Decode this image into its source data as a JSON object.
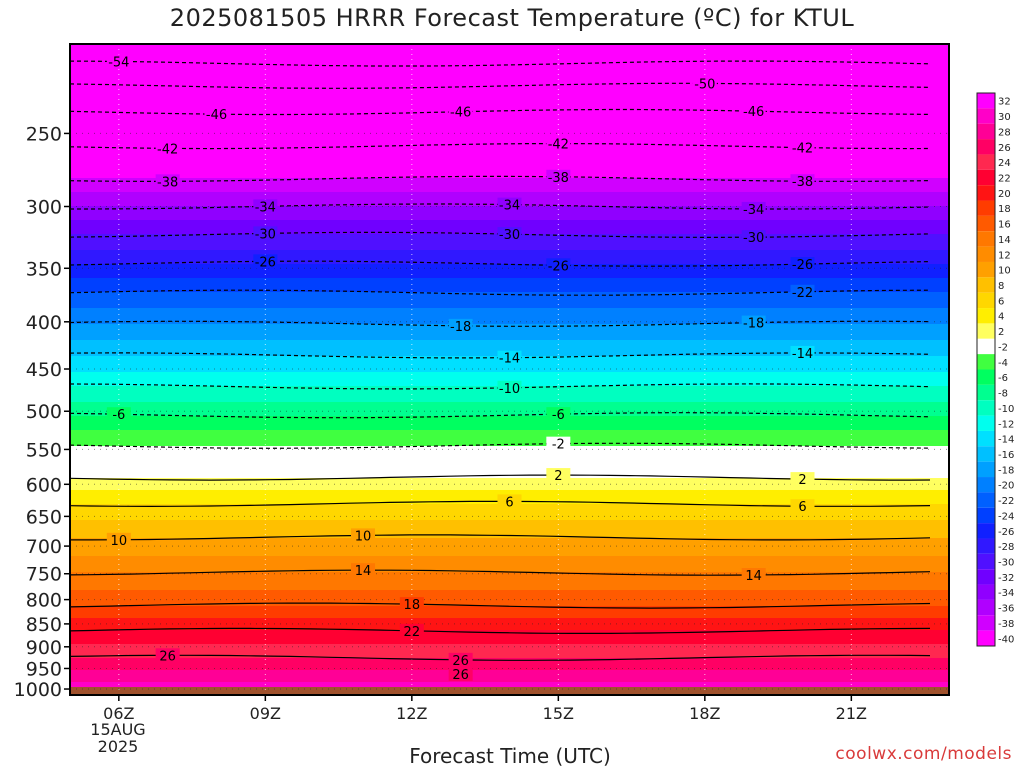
{
  "title": "2025081505 HRRR Forecast Temperature (ºC) for KTUL",
  "credit": "coolwx.com/models",
  "chart_data": {
    "type": "heatmap",
    "title": "2025081505 HRRR Forecast Temperature (ºC) for KTUL",
    "xlabel": "Forecast Time (UTC)",
    "ylabel": "",
    "x_ticks": [
      "06Z",
      "09Z",
      "12Z",
      "15Z",
      "18Z",
      "21Z"
    ],
    "x_ticks_hours": [
      6,
      9,
      12,
      15,
      18,
      21
    ],
    "date_label": [
      "15AUG",
      "2025"
    ],
    "xlim": [
      5,
      23
    ],
    "y_ticks": [
      250,
      300,
      350,
      400,
      450,
      500,
      550,
      600,
      650,
      700,
      750,
      800,
      850,
      900,
      950,
      1000
    ],
    "ylim_hpa": [
      1015,
      200
    ],
    "y_scale": "log",
    "surface_pressure": 995,
    "colorbar_levels": [
      32,
      30,
      28,
      26,
      24,
      22,
      20,
      18,
      16,
      14,
      12,
      10,
      8,
      6,
      4,
      2,
      -2,
      -4,
      -6,
      -8,
      -10,
      -12,
      -14,
      -16,
      -18,
      -20,
      -22,
      -24,
      -26,
      -28,
      -30,
      -32,
      -34,
      -36,
      -38,
      -40
    ],
    "colorbar_colors": [
      "#ff00ff",
      "#ff00c8",
      "#ff0096",
      "#ff0064",
      "#ff2850",
      "#ff0032",
      "#ff1414",
      "#ff3c00",
      "#ff5a00",
      "#ff7800",
      "#ff8c00",
      "#ffa000",
      "#ffc000",
      "#ffd700",
      "#ffee00",
      "#ffff60",
      "#ffffff",
      "#40ff40",
      "#00ff60",
      "#00ff90",
      "#00ffc0",
      "#00ffee",
      "#00e0ff",
      "#00c0ff",
      "#00a0ff",
      "#0080ff",
      "#0060ff",
      "#0040ff",
      "#1020ff",
      "#3018ff",
      "#5010ff",
      "#7000ff",
      "#9000ff",
      "#b000ff",
      "#d000ff",
      "#ff00ff"
    ],
    "contours": [
      {
        "value": -54,
        "pressure": 210,
        "labels": [
          "-54"
        ],
        "label_hours": [
          6
        ]
      },
      {
        "value": -50,
        "pressure": 222,
        "labels": [
          "-50"
        ],
        "label_hours": [
          18
        ]
      },
      {
        "value": -46,
        "pressure": 237,
        "labels": [
          "-46",
          "-46",
          "-46"
        ],
        "label_hours": [
          8,
          13,
          19
        ]
      },
      {
        "value": -42,
        "pressure": 258,
        "labels": [
          "-42",
          "-42",
          "-42"
        ],
        "label_hours": [
          7,
          15,
          20
        ]
      },
      {
        "value": -38,
        "pressure": 280,
        "labels": [
          "-38",
          "-38",
          "-38"
        ],
        "label_hours": [
          7,
          15,
          20
        ]
      },
      {
        "value": -34,
        "pressure": 300,
        "labels": [
          "-34",
          "-34",
          "-34"
        ],
        "label_hours": [
          9,
          14,
          19
        ]
      },
      {
        "value": -30,
        "pressure": 322,
        "labels": [
          "-30",
          "-30",
          "-30"
        ],
        "label_hours": [
          9,
          14,
          19
        ]
      },
      {
        "value": -26,
        "pressure": 346,
        "labels": [
          "-26",
          "-26",
          "-26"
        ],
        "label_hours": [
          9,
          15,
          20
        ]
      },
      {
        "value": -22,
        "pressure": 372,
        "labels": [
          "-22"
        ],
        "label_hours": [
          20
        ]
      },
      {
        "value": -18,
        "pressure": 402,
        "labels": [
          "-18",
          "-18"
        ],
        "label_hours": [
          13,
          19
        ]
      },
      {
        "value": -14,
        "pressure": 435,
        "labels": [
          "-14",
          "-14"
        ],
        "label_hours": [
          14,
          20
        ]
      },
      {
        "value": -10,
        "pressure": 470,
        "labels": [
          "-10"
        ],
        "label_hours": [
          14
        ]
      },
      {
        "value": -6,
        "pressure": 505,
        "labels": [
          "-6",
          "-6"
        ],
        "label_hours": [
          6,
          15
        ]
      },
      {
        "value": -2,
        "pressure": 545,
        "labels": [
          "-2"
        ],
        "label_hours": [
          15
        ]
      },
      {
        "value": 2,
        "pressure": 590,
        "labels": [
          "2",
          "2"
        ],
        "label_hours": [
          15,
          20
        ]
      },
      {
        "value": 6,
        "pressure": 630,
        "labels": [
          "6",
          "6"
        ],
        "label_hours": [
          14,
          20
        ]
      },
      {
        "value": 10,
        "pressure": 685,
        "labels": [
          "10",
          "10"
        ],
        "label_hours": [
          6,
          11
        ]
      },
      {
        "value": 14,
        "pressure": 748,
        "labels": [
          "14",
          "14"
        ],
        "label_hours": [
          11,
          19
        ]
      },
      {
        "value": 18,
        "pressure": 812,
        "labels": [
          "18"
        ],
        "label_hours": [
          12
        ]
      },
      {
        "value": 22,
        "pressure": 865,
        "labels": [
          "22"
        ],
        "label_hours": [
          12
        ]
      },
      {
        "value": 26,
        "pressure": 925,
        "labels": [
          "26",
          "26",
          "26"
        ],
        "label_hours": [
          7,
          13,
          13
        ]
      }
    ]
  }
}
